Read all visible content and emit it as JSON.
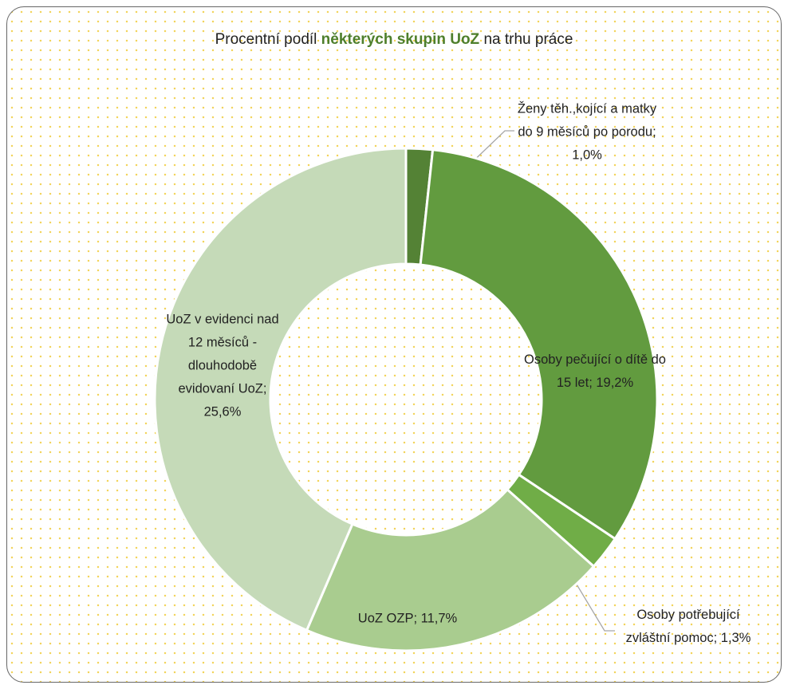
{
  "chart_data": {
    "type": "donut",
    "title": [
      {
        "text": "Procentní podíl ",
        "bold": false
      },
      {
        "text": "některých skupin UoZ",
        "bold": true
      },
      {
        "text": " na trhu práce",
        "bold": false
      }
    ],
    "categories": [
      "Ženy těh.,kojící a matky do 9 měsíců po porodu",
      "Osoby pečující o dítě do 15 let",
      "Osoby potřebující zvláštní pomoc",
      "UoZ OZP",
      "UoZ v evidenci nad 12 měsíců - dlouhodobě evidovaní UoZ"
    ],
    "label_separator": "; ",
    "values": [
      1.0,
      19.2,
      1.3,
      11.7,
      25.6
    ],
    "value_labels": [
      "1,0%",
      "19,2%",
      "1,3%",
      "11,7%",
      "25,6%"
    ],
    "colors": [
      "#548235",
      "#629b3f",
      "#70ad47",
      "#a9cc8f",
      "#c5dab8"
    ]
  }
}
